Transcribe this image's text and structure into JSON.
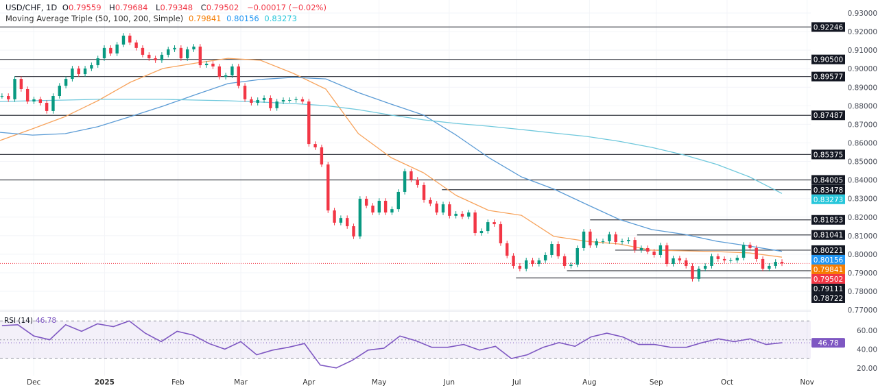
{
  "header": {
    "symbol": "USD/CHF, 1D",
    "open_label": "O",
    "open": "0.79559",
    "high_label": "H",
    "high": "0.79684",
    "low_label": "L",
    "low": "0.79348",
    "close_label": "C",
    "close": "0.79502",
    "change": "−0.00017 (−0.02%)"
  },
  "indicator": {
    "name": "Moving Average Triple (50, 100, 200, Simple)",
    "ma50": "0.79841",
    "ma100": "0.80156",
    "ma200": "0.83273"
  },
  "rsi_header": {
    "name": "RSI (14)",
    "value": "46.78"
  },
  "colors": {
    "up": "#089981",
    "down": "#f23645",
    "ma50": "#f7a35c",
    "ma100": "#5b9bd5",
    "ma200": "#6fc8dc",
    "ma100_tag": "#2196f3",
    "ma50_tag": "#f57c00",
    "ma200_tag": "#26c6da",
    "level_tag": "#131722",
    "rsi": "#7e57c2"
  },
  "chart_data": [
    {
      "type": "candlestick",
      "x_range": [
        "Nov",
        "Oct"
      ],
      "ylim": [
        0.765,
        0.933
      ],
      "grid": true,
      "y_ticks": [
        "0.93000",
        "0.92000",
        "0.91000",
        "0.90000",
        "0.89000",
        "0.88000",
        "0.87000",
        "0.86000",
        "0.85000",
        "0.84000",
        "0.83000",
        "0.82000",
        "0.81000",
        "0.80000",
        "0.79000",
        "0.78000",
        "0.77000"
      ],
      "x_ticks": [
        "Dec",
        "2025",
        "Feb",
        "Mar",
        "Apr",
        "May",
        "Jun",
        "Jul",
        "Aug",
        "Sep",
        "Oct",
        "Nov"
      ],
      "closes": [
        0.8853,
        0.8835,
        0.8945,
        0.889,
        0.8823,
        0.8835,
        0.8816,
        0.8772,
        0.8853,
        0.8908,
        0.8945,
        0.9001,
        0.8971,
        0.9001,
        0.9019,
        0.9056,
        0.9112,
        0.9082,
        0.913,
        0.9178,
        0.9141,
        0.9112,
        0.9075,
        0.9056,
        0.9045,
        0.9075,
        0.9104,
        0.9112,
        0.9056,
        0.9104,
        0.9119,
        0.9019,
        0.9027,
        0.9012,
        0.8956,
        0.8964,
        0.9012,
        0.8908,
        0.8835,
        0.8816,
        0.8831,
        0.8842,
        0.8787,
        0.8823,
        0.8831,
        0.8831,
        0.8835,
        0.8823,
        0.8594,
        0.8576,
        0.8484,
        0.8236,
        0.817,
        0.8195,
        0.8151,
        0.8096,
        0.8299,
        0.8262,
        0.8225,
        0.8288,
        0.8225,
        0.8243,
        0.8336,
        0.8447,
        0.8402,
        0.8373,
        0.8292,
        0.8273,
        0.8225,
        0.8269,
        0.8207,
        0.8218,
        0.8203,
        0.8225,
        0.8114,
        0.8125,
        0.8173,
        0.8162,
        0.8059,
        0.7992,
        0.7937,
        0.7922,
        0.7967,
        0.7948,
        0.7967,
        0.7996,
        0.8055,
        0.7989,
        0.7937,
        0.7944,
        0.8033,
        0.8122,
        0.8048,
        0.807,
        0.807,
        0.8107,
        0.8066,
        0.807,
        0.8077,
        0.8022,
        0.8033,
        0.8014,
        0.7996,
        0.8048,
        0.7948,
        0.7978,
        0.7967,
        0.7937,
        0.7867,
        0.7922,
        0.7937,
        0.7989,
        0.7974,
        0.7967,
        0.7967,
        0.7981,
        0.8051,
        0.8033,
        0.7974,
        0.7922,
        0.7937,
        0.7959,
        0.79502
      ],
      "series": [
        {
          "name": "MA 50",
          "values": [
            0.8613,
            0.8676,
            0.8742,
            0.8827,
            0.8927,
            0.9001,
            0.903,
            0.9056,
            0.9045,
            0.8975,
            0.889,
            0.865,
            0.8521,
            0.8439,
            0.8317,
            0.8236,
            0.821,
            0.8096,
            0.807,
            0.8055,
            0.8022,
            0.8018,
            0.8014,
            0.8007,
            0.79841
          ]
        },
        {
          "name": "MA 100",
          "values": [
            0.8657,
            0.8642,
            0.865,
            0.8687,
            0.8742,
            0.8798,
            0.886,
            0.892,
            0.8942,
            0.8953,
            0.8945,
            0.8871,
            0.8809,
            0.875,
            0.8642,
            0.8521,
            0.8417,
            0.8351,
            0.8269,
            0.8188,
            0.8133,
            0.8107,
            0.807,
            0.8044,
            0.80156
          ]
        },
        {
          "name": "MA 200",
          "values": [
            0.8823,
            0.8827,
            0.8831,
            0.8835,
            0.8835,
            0.8835,
            0.8831,
            0.8827,
            0.882,
            0.8812,
            0.8801,
            0.8779,
            0.875,
            0.8724,
            0.8705,
            0.869,
            0.8672,
            0.8653,
            0.8635,
            0.8609,
            0.8576,
            0.8535,
            0.8484,
            0.8417,
            0.83273
          ]
        }
      ],
      "levels": [
        {
          "value": 0.92246,
          "label": "0.92246"
        },
        {
          "value": 0.905,
          "label": "0.90500"
        },
        {
          "value": 0.89577,
          "label": "0.89577"
        },
        {
          "value": 0.87487,
          "label": "0.87487"
        },
        {
          "value": 0.85375,
          "label": "0.85375"
        },
        {
          "value": 0.84005,
          "label": "0.84005"
        },
        {
          "value": 0.83478,
          "label": "0.83478"
        },
        {
          "value": 0.81853,
          "label": "0.81853"
        },
        {
          "value": 0.81041,
          "label": "0.81041"
        },
        {
          "value": 0.80221,
          "label": "0.80221"
        },
        {
          "value": 0.79111,
          "label": "0.79111"
        },
        {
          "value": 0.78722,
          "label": "0.78722"
        }
      ],
      "tags": [
        {
          "value": 0.83273,
          "label": "0.83273",
          "color": "#26c6da"
        },
        {
          "value": 0.80156,
          "label": "0.80156",
          "color": "#2196f3"
        },
        {
          "value": 0.79841,
          "label": "0.79841",
          "color": "#f57c00"
        },
        {
          "value": 0.79502,
          "label": "0.79502",
          "color": "#f23645"
        }
      ],
      "last_price": 0.79502
    },
    {
      "type": "line",
      "title": "RSI (14)",
      "ylim": [
        15,
        75
      ],
      "y_ticks": [
        "60.00",
        "40.00",
        "20.00"
      ],
      "bands": {
        "upper": 70,
        "middle": 50,
        "lower": 30
      },
      "values": [
        65,
        66,
        54,
        50,
        66,
        59,
        67,
        64,
        70,
        57,
        48,
        59,
        55,
        46,
        40,
        48,
        34,
        39,
        42,
        46,
        23,
        20,
        28,
        39,
        41,
        54,
        49,
        42,
        42,
        45,
        39,
        43,
        30,
        34,
        42,
        47,
        43,
        53,
        57,
        53,
        45,
        45,
        42,
        42,
        47,
        51,
        48,
        51,
        45,
        46.78
      ],
      "last_value": "46.78"
    }
  ]
}
